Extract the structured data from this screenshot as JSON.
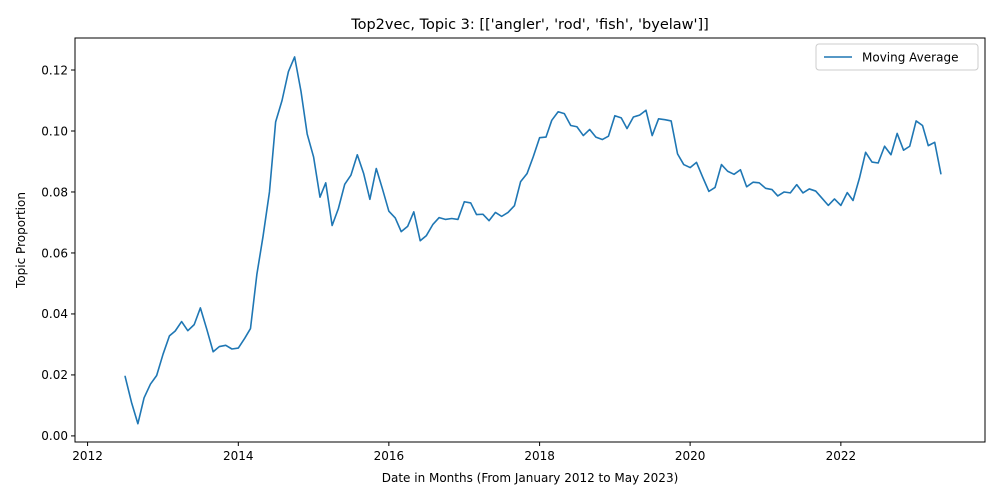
{
  "chart_data": {
    "type": "line",
    "title": "Top2vec, Topic 3: [['angler', 'rod', 'fish', 'byelaw']]",
    "xlabel": "Date in Months (From January 2012 to May 2023)",
    "ylabel": "Topic Proportion",
    "xlim": [
      "2011-11-01",
      "2023-12-01"
    ],
    "ylim": [
      -0.002,
      0.1305
    ],
    "x_ticks": [
      "2012",
      "2014",
      "2016",
      "2018",
      "2020",
      "2022"
    ],
    "y_ticks": [
      "0.00",
      "0.02",
      "0.04",
      "0.06",
      "0.08",
      "0.10",
      "0.12"
    ],
    "legend": {
      "position": "top-right",
      "entries": [
        "Moving Average"
      ]
    },
    "grid": false,
    "colors": {
      "line": "#1f77b4"
    },
    "series": [
      {
        "name": "Moving Average",
        "x": [
          "2012-07",
          "2012-08",
          "2012-09",
          "2012-10",
          "2012-11",
          "2012-12",
          "2013-01",
          "2013-02",
          "2013-03",
          "2013-04",
          "2013-05",
          "2013-06",
          "2013-07",
          "2013-08",
          "2013-09",
          "2013-10",
          "2013-11",
          "2013-12",
          "2014-01",
          "2014-02",
          "2014-03",
          "2014-04",
          "2014-05",
          "2014-06",
          "2014-07",
          "2014-08",
          "2014-09",
          "2014-10",
          "2014-11",
          "2014-12",
          "2015-01",
          "2015-02",
          "2015-03",
          "2015-04",
          "2015-05",
          "2015-06",
          "2015-07",
          "2015-08",
          "2015-09",
          "2015-10",
          "2015-11",
          "2015-12",
          "2016-01",
          "2016-02",
          "2016-03",
          "2016-04",
          "2016-05",
          "2016-06",
          "2016-07",
          "2016-08",
          "2016-09",
          "2016-10",
          "2016-11",
          "2016-12",
          "2017-01",
          "2017-02",
          "2017-03",
          "2017-04",
          "2017-05",
          "2017-06",
          "2017-07",
          "2017-08",
          "2017-09",
          "2017-10",
          "2017-11",
          "2017-12",
          "2018-01",
          "2018-02",
          "2018-03",
          "2018-04",
          "2018-05",
          "2018-06",
          "2018-07",
          "2018-08",
          "2018-09",
          "2018-10",
          "2018-11",
          "2018-12",
          "2019-01",
          "2019-02",
          "2019-03",
          "2019-04",
          "2019-05",
          "2019-06",
          "2019-07",
          "2019-08",
          "2019-09",
          "2019-10",
          "2019-11",
          "2019-12",
          "2020-01",
          "2020-02",
          "2020-03",
          "2020-04",
          "2020-05",
          "2020-06",
          "2020-07",
          "2020-08",
          "2020-09",
          "2020-10",
          "2020-11",
          "2020-12",
          "2021-01",
          "2021-02",
          "2021-03",
          "2021-04",
          "2021-05",
          "2021-06",
          "2021-07",
          "2021-08",
          "2021-09",
          "2021-10",
          "2021-11",
          "2021-12",
          "2022-01",
          "2022-02",
          "2022-03",
          "2022-04",
          "2022-05",
          "2022-06",
          "2022-07",
          "2022-08",
          "2022-09",
          "2022-10",
          "2022-11",
          "2022-12",
          "2023-01",
          "2023-02",
          "2023-03",
          "2023-04",
          "2023-05"
        ],
        "values": [
          0.0195,
          0.011,
          0.004,
          0.0125,
          0.017,
          0.0198,
          0.0268,
          0.0328,
          0.0344,
          0.0375,
          0.0345,
          0.0365,
          0.042,
          0.035,
          0.0276,
          0.0293,
          0.0297,
          0.0285,
          0.0288,
          0.032,
          0.0352,
          0.053,
          0.0655,
          0.08,
          0.103,
          0.11,
          0.1195,
          0.1243,
          0.113,
          0.099,
          0.0915,
          0.0783,
          0.083,
          0.069,
          0.0745,
          0.0825,
          0.0855,
          0.0922,
          0.086,
          0.0776,
          0.0877,
          0.081,
          0.0737,
          0.0715,
          0.067,
          0.0687,
          0.0735,
          0.064,
          0.0657,
          0.0693,
          0.0716,
          0.071,
          0.0713,
          0.071,
          0.0768,
          0.0764,
          0.0726,
          0.0727,
          0.0706,
          0.0733,
          0.072,
          0.0733,
          0.0755,
          0.0834,
          0.086,
          0.0915,
          0.0978,
          0.098,
          0.1035,
          0.1063,
          0.1057,
          0.1018,
          0.1014,
          0.0985,
          0.1005,
          0.098,
          0.0972,
          0.0983,
          0.105,
          0.1043,
          0.1008,
          0.1046,
          0.1052,
          0.1068,
          0.0985,
          0.104,
          0.1037,
          0.1033,
          0.0925,
          0.089,
          0.088,
          0.0897,
          0.085,
          0.0802,
          0.0815,
          0.089,
          0.0868,
          0.0858,
          0.0873,
          0.0817,
          0.0832,
          0.083,
          0.0812,
          0.0808,
          0.0787,
          0.08,
          0.0797,
          0.0824,
          0.0797,
          0.081,
          0.0803,
          0.078,
          0.0756,
          0.0777,
          0.0756,
          0.0798,
          0.0772,
          0.0845,
          0.093,
          0.0898,
          0.0895,
          0.095,
          0.0922,
          0.0992,
          0.0937,
          0.095,
          0.1033,
          0.1018,
          0.0952,
          0.0963,
          0.086
        ]
      }
    ]
  }
}
